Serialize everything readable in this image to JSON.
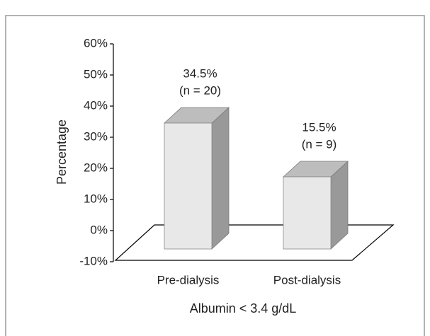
{
  "chart_data": {
    "type": "bar3d",
    "categories": [
      "Pre-dialysis",
      "Post-dialysis"
    ],
    "values": [
      34.5,
      15.5
    ],
    "value_labels": [
      "34.5%",
      "15.5%"
    ],
    "n_labels": [
      "(n = 20)",
      "(n = 9)"
    ],
    "ylabel": "Percentage",
    "xlabel": "Albumin < 3.4 g/dL",
    "ylim": [
      -10,
      60
    ],
    "yticks": [
      {
        "value": -10,
        "label": "-10%"
      },
      {
        "value": 0,
        "label": "0%"
      },
      {
        "value": 10,
        "label": "10%"
      },
      {
        "value": 20,
        "label": "20%"
      },
      {
        "value": 30,
        "label": "30%"
      },
      {
        "value": 40,
        "label": "40%"
      },
      {
        "value": 50,
        "label": "50%"
      },
      {
        "value": 60,
        "label": "60%"
      }
    ],
    "colors": {
      "front": "#e8e8e8",
      "side": "#999999",
      "top": "#bdbdbd"
    }
  }
}
